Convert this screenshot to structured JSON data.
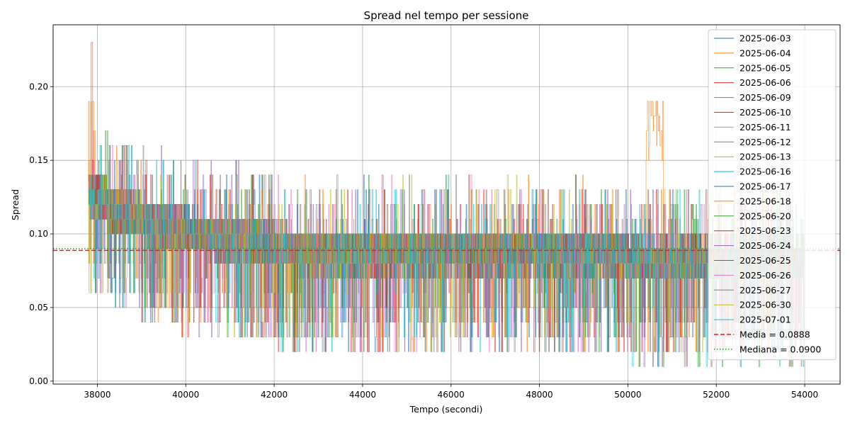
{
  "chart_data": {
    "type": "line",
    "title": "Spread nel tempo per sessione",
    "xlabel": "Tempo (secondi)",
    "ylabel": "Spread",
    "xlim": [
      37000,
      54800
    ],
    "ylim": [
      -0.002,
      0.242
    ],
    "xticks": [
      38000,
      40000,
      42000,
      44000,
      46000,
      48000,
      50000,
      52000,
      54000
    ],
    "xtick_labels": [
      "38000",
      "40000",
      "42000",
      "44000",
      "46000",
      "48000",
      "50000",
      "52000",
      "54000"
    ],
    "yticks": [
      0.0,
      0.05,
      0.1,
      0.15,
      0.2
    ],
    "ytick_labels": [
      "0.00",
      "0.05",
      "0.10",
      "0.15",
      "0.20"
    ],
    "grid": true,
    "legend_position": "top-right",
    "session_time_range": [
      37800,
      54000
    ],
    "series": [
      {
        "name": "2025-06-03",
        "color": "#1f77b4"
      },
      {
        "name": "2025-06-04",
        "color": "#ff7f0e"
      },
      {
        "name": "2025-06-05",
        "color": "#2ca02c"
      },
      {
        "name": "2025-06-06",
        "color": "#d62728"
      },
      {
        "name": "2025-06-09",
        "color": "#9467bd"
      },
      {
        "name": "2025-06-10",
        "color": "#8c564b"
      },
      {
        "name": "2025-06-11",
        "color": "#e377c2"
      },
      {
        "name": "2025-06-12",
        "color": "#7f7f7f"
      },
      {
        "name": "2025-06-13",
        "color": "#bcbd22"
      },
      {
        "name": "2025-06-16",
        "color": "#17becf"
      },
      {
        "name": "2025-06-17",
        "color": "#1f77b4"
      },
      {
        "name": "2025-06-18",
        "color": "#ff7f0e"
      },
      {
        "name": "2025-06-20",
        "color": "#2ca02c"
      },
      {
        "name": "2025-06-23",
        "color": "#d62728"
      },
      {
        "name": "2025-06-24",
        "color": "#9467bd"
      },
      {
        "name": "2025-06-25",
        "color": "#8c564b"
      },
      {
        "name": "2025-06-26",
        "color": "#e377c2"
      },
      {
        "name": "2025-06-27",
        "color": "#7f7f7f"
      },
      {
        "name": "2025-06-30",
        "color": "#bcbd22"
      },
      {
        "name": "2025-07-01",
        "color": "#17becf"
      }
    ],
    "reference_lines": [
      {
        "name": "Media = 0.0888",
        "value": 0.0888,
        "color": "#d62728",
        "style": "dashed"
      },
      {
        "name": "Mediana = 0.0900",
        "value": 0.09,
        "color": "#2ca02c",
        "style": "dotted"
      }
    ],
    "features": {
      "opening_spike": {
        "x": 37800,
        "y": 0.23
      },
      "afternoon_spike": {
        "x_range": [
          50400,
          50800
        ],
        "y_peak": 0.2
      },
      "typical_range": [
        0.07,
        0.1
      ]
    }
  }
}
